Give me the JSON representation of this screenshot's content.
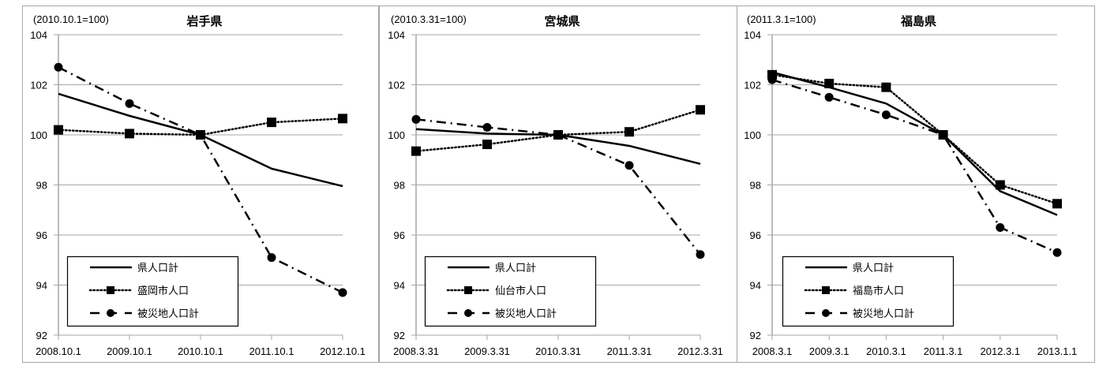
{
  "chart_data": [
    {
      "type": "line",
      "title": "岩手県",
      "base_note": "(2010.10.1=100)",
      "categories": [
        "2008.10.1",
        "2009.10.1",
        "2010.10.1",
        "2011.10.1",
        "2012.10.1"
      ],
      "ylim": [
        92,
        104
      ],
      "yticks": [
        92,
        94,
        96,
        98,
        100,
        102,
        104
      ],
      "grid": true,
      "legend_position": "bottom-left",
      "series": [
        {
          "name": "県人口計",
          "style": "solid",
          "marker": "none",
          "values": [
            101.64,
            100.76,
            100,
            98.65,
            97.95
          ]
        },
        {
          "name": "盛岡市人口",
          "style": "dotted",
          "marker": "square",
          "values": [
            100.2,
            100.05,
            100,
            100.5,
            100.65
          ]
        },
        {
          "name": "被災地人口計",
          "style": "dashdot",
          "marker": "circle",
          "values": [
            102.7,
            101.25,
            100,
            95.1,
            93.7
          ]
        }
      ]
    },
    {
      "type": "line",
      "title": "宮城県",
      "base_note": "(2010.3.31=100)",
      "categories": [
        "2008.3.31",
        "2009.3.31",
        "2010.3.31",
        "2011.3.31",
        "2012.3.31"
      ],
      "ylim": [
        92,
        104
      ],
      "yticks": [
        92,
        94,
        96,
        98,
        100,
        102,
        104
      ],
      "grid": true,
      "legend_position": "bottom-left",
      "series": [
        {
          "name": "県人口計",
          "style": "solid",
          "marker": "none",
          "values": [
            100.23,
            100.05,
            100,
            99.56,
            98.84
          ]
        },
        {
          "name": "仙台市人口",
          "style": "dotted",
          "marker": "square",
          "values": [
            99.35,
            99.62,
            100,
            100.12,
            101.0
          ]
        },
        {
          "name": "被災地人口計",
          "style": "dashdot",
          "marker": "circle",
          "values": [
            100.62,
            100.3,
            100,
            98.78,
            95.22
          ]
        }
      ]
    },
    {
      "type": "line",
      "title": "福島県",
      "base_note": "(2011.3.1=100)",
      "categories": [
        "2008.3.1",
        "2009.3.1",
        "2010.3.1",
        "2011.3.1",
        "2012.3.1",
        "2013.1.1"
      ],
      "ylim": [
        92,
        104
      ],
      "yticks": [
        92,
        94,
        96,
        98,
        100,
        102,
        104
      ],
      "grid": true,
      "legend_position": "bottom-left",
      "series": [
        {
          "name": "県人口計",
          "style": "solid",
          "marker": "none",
          "values": [
            102.5,
            101.9,
            101.25,
            100,
            97.75,
            96.8
          ]
        },
        {
          "name": "福島市人口",
          "style": "dotted",
          "marker": "square",
          "values": [
            102.4,
            102.05,
            101.9,
            100,
            98.0,
            97.25
          ]
        },
        {
          "name": "被災地人口計",
          "style": "dashdot",
          "marker": "circle",
          "values": [
            102.2,
            101.5,
            100.8,
            100,
            96.3,
            95.3
          ]
        }
      ]
    }
  ],
  "colors": {
    "line": "#000000",
    "grid": "#a6a6a6",
    "frame": "#a6a6a6"
  }
}
